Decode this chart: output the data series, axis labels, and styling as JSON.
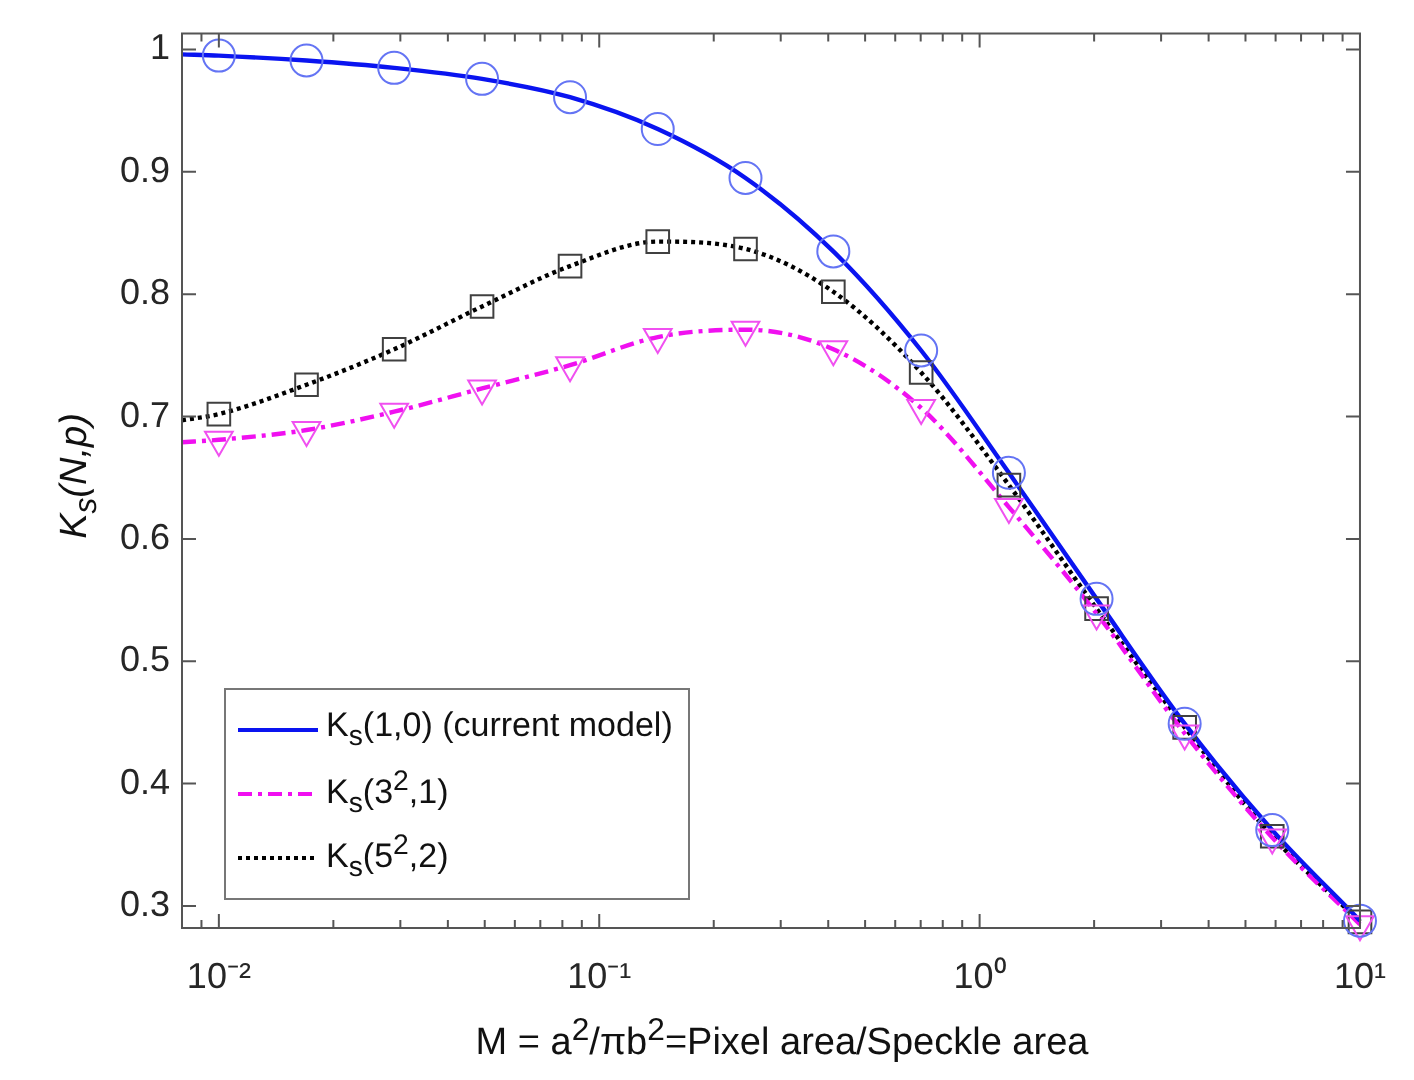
{
  "chart_data": {
    "type": "line",
    "xlabel": "M = a$^{2}$/πb$^{2}$=Pixel area/Speckle area",
    "ylabel": "K$_{s}$(N,p)",
    "log": "x",
    "grid": false,
    "legend": "bottom left",
    "xlim": [
      0.008,
      10
    ],
    "ylim": [
      0.282,
      1.013
    ],
    "xticks": [
      {
        "value": 0.008,
        "label": null
      },
      {
        "value": 0.009,
        "label": null
      },
      {
        "value": 0.01,
        "label": "10⁻²"
      },
      {
        "value": 0.02,
        "label": null
      },
      {
        "value": 0.03,
        "label": null
      },
      {
        "value": 0.04,
        "label": null
      },
      {
        "value": 0.05,
        "label": null
      },
      {
        "value": 0.06,
        "label": null
      },
      {
        "value": 0.07,
        "label": null
      },
      {
        "value": 0.08,
        "label": null
      },
      {
        "value": 0.09,
        "label": null
      },
      {
        "value": 0.1,
        "label": "10⁻¹"
      },
      {
        "value": 0.2,
        "label": null
      },
      {
        "value": 0.3,
        "label": null
      },
      {
        "value": 0.4,
        "label": null
      },
      {
        "value": 0.5,
        "label": null
      },
      {
        "value": 0.6,
        "label": null
      },
      {
        "value": 0.7,
        "label": null
      },
      {
        "value": 0.8,
        "label": null
      },
      {
        "value": 0.9,
        "label": null
      },
      {
        "value": 1,
        "label": "10⁰"
      },
      {
        "value": 2,
        "label": null
      },
      {
        "value": 3,
        "label": null
      },
      {
        "value": 4,
        "label": null
      },
      {
        "value": 5,
        "label": null
      },
      {
        "value": 6,
        "label": null
      },
      {
        "value": 7,
        "label": null
      },
      {
        "value": 8,
        "label": null
      },
      {
        "value": 9,
        "label": null
      },
      {
        "value": 10,
        "label": "10¹"
      }
    ],
    "yticks": [
      0.3,
      0.4,
      0.5,
      0.6,
      0.7,
      0.8,
      0.9,
      1
    ],
    "series": [
      {
        "name": "K$_{s}$(1,0) (current model)",
        "color": "#0a14f0",
        "marker": "none",
        "line_style": "solid",
        "x": [
          0.008,
          0.01,
          0.017,
          0.0289,
          0.0492,
          0.0838,
          0.1425,
          0.2424,
          0.4125,
          0.702,
          1.194,
          2.03,
          3.46,
          5.88,
          10
        ],
        "values": [
          0.996,
          0.995,
          0.991,
          0.985,
          0.976,
          0.961,
          0.935,
          0.895,
          0.835,
          0.754,
          0.654,
          0.551,
          0.449,
          0.362,
          0.288
        ]
      },
      {
        "name": "K$_{s}$(3$^{2}$,1)",
        "color": "#f010f0",
        "marker": "none",
        "line_style": "dashed",
        "x": [
          0.008,
          0.01,
          0.017,
          0.0289,
          0.0492,
          0.0838,
          0.1425,
          0.2424,
          0.4125,
          0.702,
          1.194,
          2.03,
          3.46,
          5.88,
          10
        ],
        "values": [
          0.679,
          0.681,
          0.689,
          0.704,
          0.723,
          0.742,
          0.765,
          0.771,
          0.755,
          0.707,
          0.626,
          0.539,
          0.441,
          0.356,
          0.285
        ]
      },
      {
        "name": "K$_{s}$(5$^{2}$,2)",
        "color": "#000000",
        "marker": "none",
        "line_style": "dotted",
        "x": [
          0.008,
          0.01,
          0.017,
          0.0289,
          0.0492,
          0.0838,
          0.1425,
          0.2424,
          0.4125,
          0.702,
          1.194,
          2.03,
          3.46,
          5.88,
          10
        ],
        "values": [
          0.697,
          0.702,
          0.726,
          0.755,
          0.79,
          0.823,
          0.843,
          0.837,
          0.802,
          0.736,
          0.644,
          0.543,
          0.446,
          0.357,
          0.287
        ]
      },
      {
        "type": "scatter",
        "color": "#6474f4",
        "marker": "circle",
        "x": [
          0.01,
          0.017,
          0.0289,
          0.0492,
          0.0838,
          0.1425,
          0.2424,
          0.4125,
          0.702,
          1.194,
          2.03,
          3.46,
          5.88,
          10
        ],
        "values": [
          0.995,
          0.991,
          0.985,
          0.976,
          0.961,
          0.935,
          0.895,
          0.835,
          0.754,
          0.654,
          0.551,
          0.449,
          0.362,
          0.288
        ]
      },
      {
        "type": "scatter",
        "color": "#f050f0",
        "marker": "triangle",
        "x": [
          0.01,
          0.017,
          0.0289,
          0.0492,
          0.0838,
          0.1425,
          0.2424,
          0.4125,
          0.702,
          1.194,
          2.03,
          3.46,
          5.88,
          10
        ],
        "values": [
          0.681,
          0.689,
          0.704,
          0.723,
          0.742,
          0.765,
          0.771,
          0.755,
          0.707,
          0.626,
          0.539,
          0.441,
          0.356,
          0.285
        ]
      },
      {
        "type": "scatter",
        "color": "#404040",
        "marker": "square",
        "x": [
          0.01,
          0.017,
          0.0289,
          0.0492,
          0.0838,
          0.1425,
          0.2424,
          0.4125,
          0.702,
          1.194,
          2.03,
          3.46,
          5.88,
          10
        ],
        "values": [
          0.702,
          0.726,
          0.755,
          0.79,
          0.823,
          0.843,
          0.837,
          0.802,
          0.736,
          0.644,
          0.543,
          0.446,
          0.357,
          0.287
        ]
      }
    ]
  }
}
